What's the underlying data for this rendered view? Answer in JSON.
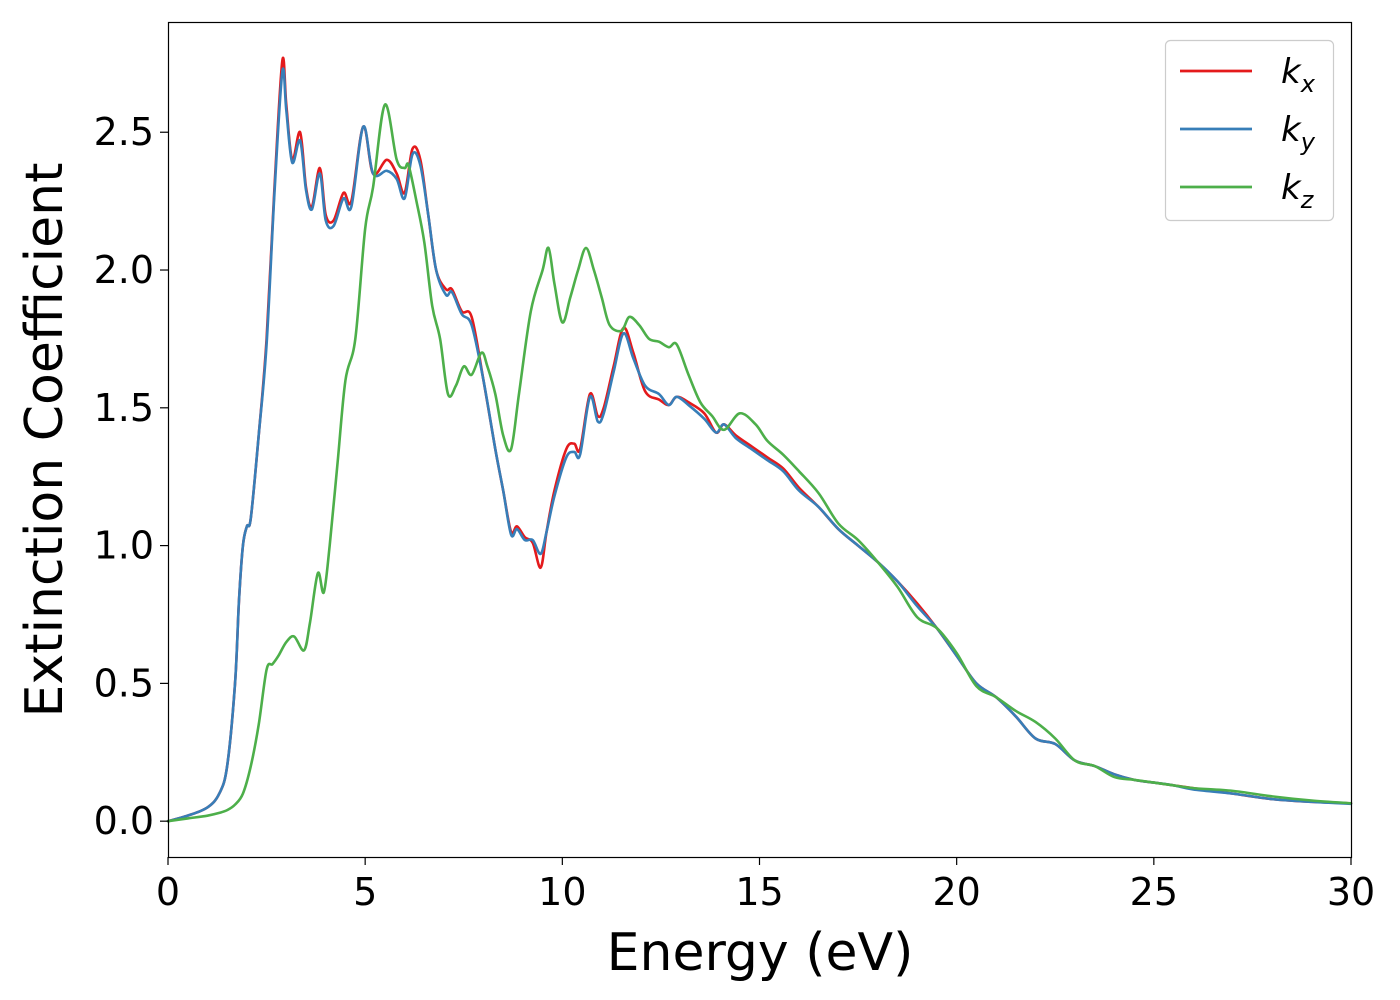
{
  "chart_data": {
    "type": "line",
    "xlabel": "Energy (eV)",
    "ylabel": "Extinction Coefficient",
    "xlim": [
      0,
      30
    ],
    "ylim": [
      -0.13,
      2.9
    ],
    "xticks": [
      0,
      5,
      10,
      15,
      20,
      25,
      30
    ],
    "xtick_labels": [
      "0",
      "5",
      "10",
      "15",
      "20",
      "25",
      "30"
    ],
    "yticks": [
      0.0,
      0.5,
      1.0,
      1.5,
      2.0,
      2.5
    ],
    "ytick_labels": [
      "0.0",
      "0.5",
      "1.0",
      "1.5",
      "2.0",
      "2.5"
    ],
    "grid": false,
    "legend_position": "top-right",
    "series": [
      {
        "name": "k",
        "subscript": "x",
        "color": "#e41a1c",
        "x": [
          0,
          0.5,
          1.0,
          1.3,
          1.5,
          1.7,
          1.8,
          1.9,
          2.0,
          2.1,
          2.3,
          2.5,
          2.7,
          2.9,
          3.0,
          3.15,
          3.35,
          3.5,
          3.65,
          3.85,
          4.0,
          4.2,
          4.45,
          4.65,
          4.95,
          5.2,
          5.55,
          5.8,
          6.0,
          6.2,
          6.4,
          6.6,
          6.8,
          7.05,
          7.2,
          7.45,
          7.7,
          8.0,
          8.3,
          8.5,
          8.7,
          8.85,
          9.05,
          9.25,
          9.45,
          9.6,
          9.8,
          10.1,
          10.3,
          10.45,
          10.7,
          10.9,
          11.05,
          11.3,
          11.55,
          11.8,
          12.1,
          12.45,
          12.7,
          12.9,
          13.2,
          13.6,
          13.9,
          14.1,
          14.4,
          14.8,
          15.2,
          15.6,
          16.0,
          16.5,
          17.0,
          17.5,
          18.0,
          18.5,
          19.0,
          19.5,
          20.0,
          20.5,
          21.0,
          21.5,
          22.0,
          22.5,
          23.0,
          23.5,
          24.0,
          24.5,
          25.0,
          25.5,
          26.0,
          27.0,
          28.0,
          29.0,
          30.0
        ],
        "values": [
          0.0,
          0.02,
          0.05,
          0.1,
          0.2,
          0.5,
          0.8,
          1.0,
          1.07,
          1.1,
          1.4,
          1.75,
          2.3,
          2.76,
          2.6,
          2.4,
          2.5,
          2.3,
          2.23,
          2.37,
          2.2,
          2.18,
          2.28,
          2.25,
          2.52,
          2.35,
          2.4,
          2.35,
          2.28,
          2.44,
          2.4,
          2.2,
          2.0,
          1.93,
          1.93,
          1.85,
          1.83,
          1.6,
          1.35,
          1.2,
          1.05,
          1.07,
          1.03,
          1.01,
          0.92,
          1.05,
          1.2,
          1.35,
          1.37,
          1.35,
          1.55,
          1.47,
          1.5,
          1.65,
          1.79,
          1.7,
          1.56,
          1.53,
          1.51,
          1.54,
          1.52,
          1.48,
          1.41,
          1.44,
          1.4,
          1.36,
          1.32,
          1.28,
          1.21,
          1.14,
          1.06,
          1.0,
          0.94,
          0.87,
          0.79,
          0.7,
          0.6,
          0.5,
          0.45,
          0.38,
          0.3,
          0.28,
          0.22,
          0.2,
          0.17,
          0.15,
          0.14,
          0.13,
          0.12,
          0.1,
          0.08,
          0.07,
          0.065
        ]
      },
      {
        "name": "k",
        "subscript": "y",
        "color": "#377eb8",
        "x": [
          0,
          0.5,
          1.0,
          1.3,
          1.5,
          1.7,
          1.8,
          1.9,
          2.0,
          2.1,
          2.3,
          2.5,
          2.7,
          2.9,
          3.0,
          3.15,
          3.35,
          3.5,
          3.65,
          3.85,
          4.0,
          4.2,
          4.45,
          4.65,
          4.95,
          5.2,
          5.55,
          5.8,
          6.0,
          6.2,
          6.4,
          6.6,
          6.8,
          7.05,
          7.2,
          7.45,
          7.7,
          8.0,
          8.3,
          8.5,
          8.7,
          8.85,
          9.05,
          9.25,
          9.45,
          9.6,
          9.8,
          10.1,
          10.3,
          10.45,
          10.7,
          10.9,
          11.05,
          11.3,
          11.55,
          11.8,
          12.1,
          12.45,
          12.7,
          12.9,
          13.2,
          13.6,
          13.9,
          14.1,
          14.4,
          14.8,
          15.2,
          15.6,
          16.0,
          16.5,
          17.0,
          17.5,
          18.0,
          18.5,
          19.0,
          19.5,
          20.0,
          20.5,
          21.0,
          21.5,
          22.0,
          22.5,
          23.0,
          23.5,
          24.0,
          24.5,
          25.0,
          25.5,
          26.0,
          27.0,
          28.0,
          29.0,
          30.0
        ],
        "values": [
          0.0,
          0.02,
          0.05,
          0.1,
          0.2,
          0.5,
          0.8,
          1.0,
          1.07,
          1.1,
          1.4,
          1.73,
          2.28,
          2.72,
          2.58,
          2.39,
          2.47,
          2.29,
          2.22,
          2.35,
          2.18,
          2.16,
          2.26,
          2.23,
          2.52,
          2.35,
          2.36,
          2.33,
          2.26,
          2.42,
          2.38,
          2.2,
          2.0,
          1.91,
          1.92,
          1.84,
          1.8,
          1.6,
          1.35,
          1.2,
          1.04,
          1.06,
          1.02,
          1.02,
          0.97,
          1.05,
          1.18,
          1.32,
          1.34,
          1.33,
          1.54,
          1.45,
          1.48,
          1.63,
          1.77,
          1.68,
          1.58,
          1.55,
          1.51,
          1.54,
          1.51,
          1.46,
          1.41,
          1.44,
          1.39,
          1.35,
          1.31,
          1.27,
          1.2,
          1.14,
          1.06,
          1.0,
          0.94,
          0.87,
          0.78,
          0.7,
          0.6,
          0.5,
          0.45,
          0.38,
          0.3,
          0.28,
          0.22,
          0.2,
          0.17,
          0.15,
          0.14,
          0.13,
          0.115,
          0.1,
          0.08,
          0.07,
          0.063
        ]
      },
      {
        "name": "k",
        "subscript": "z",
        "color": "#4daf4a",
        "x": [
          0,
          0.5,
          1.0,
          1.3,
          1.5,
          1.7,
          1.9,
          2.1,
          2.3,
          2.5,
          2.65,
          2.8,
          3.0,
          3.2,
          3.45,
          3.6,
          3.8,
          3.95,
          4.1,
          4.3,
          4.5,
          4.75,
          5.0,
          5.2,
          5.5,
          5.8,
          6.0,
          6.1,
          6.3,
          6.5,
          6.7,
          6.9,
          7.1,
          7.3,
          7.5,
          7.7,
          7.95,
          8.1,
          8.3,
          8.5,
          8.7,
          8.9,
          9.2,
          9.5,
          9.65,
          9.8,
          10.0,
          10.2,
          10.4,
          10.6,
          10.8,
          11.0,
          11.2,
          11.5,
          11.7,
          11.95,
          12.2,
          12.45,
          12.7,
          12.9,
          13.2,
          13.5,
          13.8,
          14.1,
          14.5,
          14.9,
          15.2,
          15.6,
          16.0,
          16.5,
          17.0,
          17.5,
          18.0,
          18.5,
          19.0,
          19.5,
          20.0,
          20.5,
          21.0,
          21.5,
          22.0,
          22.5,
          23.0,
          23.5,
          24.0,
          24.5,
          25.0,
          25.5,
          26.0,
          27.0,
          28.0,
          29.0,
          30.0
        ],
        "values": [
          0.0,
          0.01,
          0.02,
          0.03,
          0.04,
          0.06,
          0.1,
          0.2,
          0.35,
          0.55,
          0.57,
          0.6,
          0.65,
          0.67,
          0.62,
          0.72,
          0.9,
          0.83,
          1.0,
          1.3,
          1.6,
          1.75,
          2.15,
          2.3,
          2.6,
          2.4,
          2.37,
          2.38,
          2.25,
          2.1,
          1.87,
          1.75,
          1.55,
          1.58,
          1.65,
          1.62,
          1.7,
          1.65,
          1.55,
          1.4,
          1.35,
          1.55,
          1.85,
          2.0,
          2.08,
          1.95,
          1.81,
          1.9,
          2.0,
          2.08,
          2.0,
          1.9,
          1.8,
          1.78,
          1.83,
          1.8,
          1.75,
          1.74,
          1.72,
          1.73,
          1.62,
          1.52,
          1.47,
          1.42,
          1.48,
          1.44,
          1.38,
          1.33,
          1.27,
          1.19,
          1.08,
          1.02,
          0.94,
          0.85,
          0.74,
          0.7,
          0.61,
          0.49,
          0.45,
          0.4,
          0.36,
          0.3,
          0.22,
          0.2,
          0.16,
          0.15,
          0.14,
          0.13,
          0.12,
          0.11,
          0.09,
          0.075,
          0.065
        ]
      }
    ]
  }
}
